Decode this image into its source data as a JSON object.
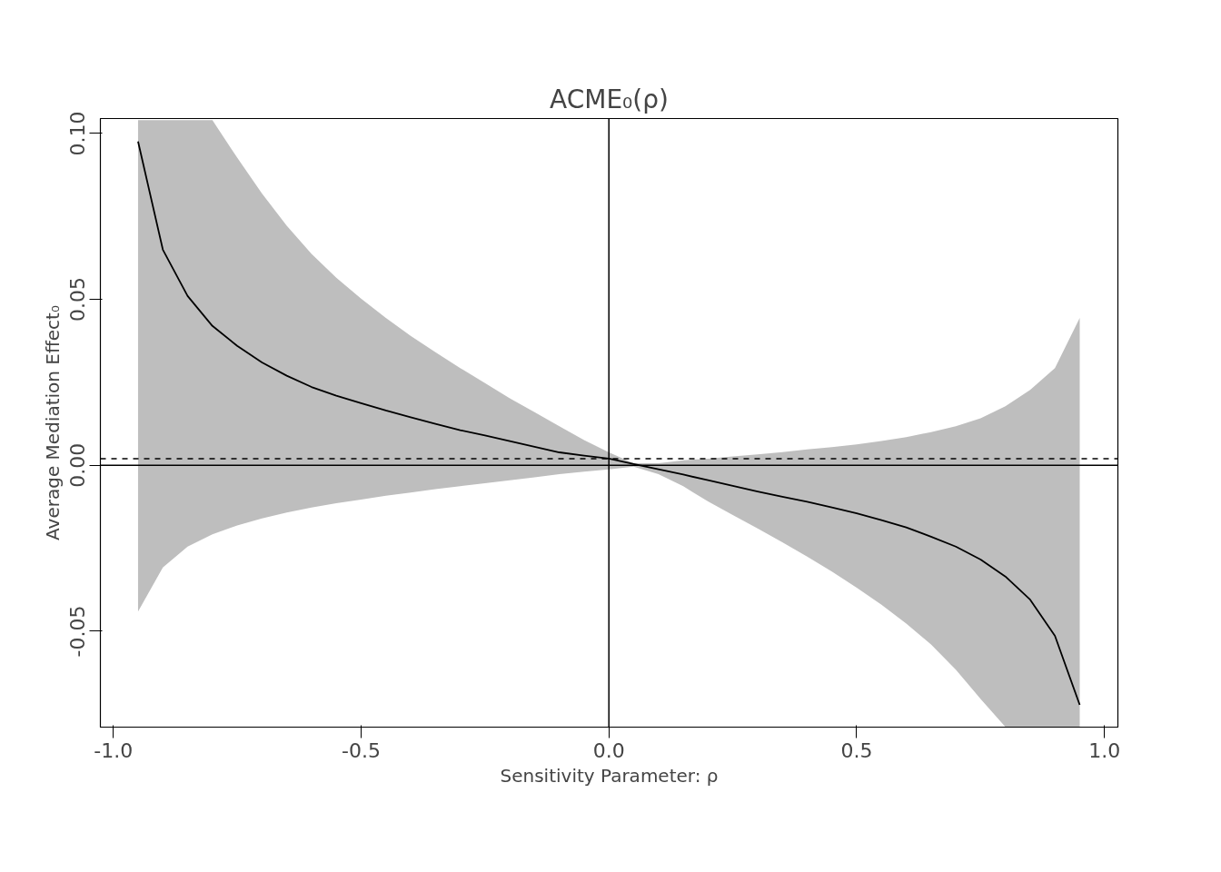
{
  "chart_data": {
    "type": "line",
    "title": "ACME₀(ρ)",
    "xlabel": "Sensitivity Parameter: ρ",
    "ylabel": "Average Mediation Effect₀",
    "xlim": [
      -1.026,
      1.027
    ],
    "ylim": [
      -0.0789,
      0.1045
    ],
    "xticks": [
      {
        "value": -1,
        "label": "-1.0"
      },
      {
        "value": -0.5,
        "label": "-0.5"
      },
      {
        "value": 0,
        "label": "0.0"
      },
      {
        "value": 0.5,
        "label": "0.5"
      },
      {
        "value": 1,
        "label": "1.0"
      }
    ],
    "yticks": [
      {
        "value": -0.05,
        "label": "-0.05"
      },
      {
        "value": 0,
        "label": "0.00"
      },
      {
        "value": 0.05,
        "label": "0.05"
      },
      {
        "value": 0.1,
        "label": "0.10"
      }
    ],
    "grid": false,
    "marker": "none",
    "line_style": "solid",
    "ref_lines": [
      {
        "axis": "y",
        "value": 0,
        "color": "#000000",
        "line_style": "solid"
      },
      {
        "axis": "x",
        "value": 0,
        "color": "#000000",
        "line_style": "solid"
      },
      {
        "axis": "y",
        "value": 0.002,
        "color": "#000000",
        "line_style": "dashed"
      }
    ],
    "series": [
      {
        "color": "#000000",
        "x": [
          -0.95,
          -0.9,
          -0.85,
          -0.8,
          -0.75,
          -0.7,
          -0.65,
          -0.6,
          -0.55,
          -0.5,
          -0.45,
          -0.4,
          -0.35,
          -0.3,
          -0.25,
          -0.2,
          -0.15,
          -0.1,
          -0.05,
          0,
          0.05,
          0.1,
          0.15,
          0.2,
          0.25,
          0.3,
          0.35,
          0.4,
          0.45,
          0.5,
          0.55,
          0.6,
          0.65,
          0.7,
          0.75,
          0.8,
          0.85,
          0.9,
          0.95
        ],
        "values": [
          0.0976,
          0.065,
          0.051,
          0.042,
          0.036,
          0.031,
          0.027,
          0.0236,
          0.021,
          0.0187,
          0.0165,
          0.0145,
          0.0125,
          0.0106,
          0.009,
          0.0073,
          0.0056,
          0.0039,
          0.0029,
          0.002,
          0.0004,
          -0.0012,
          -0.0028,
          -0.0045,
          -0.0062,
          -0.0079,
          -0.0095,
          -0.011,
          -0.0127,
          -0.0145,
          -0.0165,
          -0.0187,
          -0.0215,
          -0.0245,
          -0.0284,
          -0.0335,
          -0.0405,
          -0.0514,
          -0.0722
        ],
        "upper": [
          0.104,
          0.104,
          0.104,
          0.104,
          0.0927,
          0.0819,
          0.0722,
          0.0637,
          0.0565,
          0.0502,
          0.0444,
          0.039,
          0.0341,
          0.0293,
          0.0248,
          0.0202,
          0.016,
          0.0118,
          0.0076,
          0.0039,
          0.0006,
          0.0006,
          0.0015,
          0.002,
          0.0027,
          0.0033,
          0.004,
          0.0048,
          0.0055,
          0.0063,
          0.0073,
          0.0085,
          0.01,
          0.0118,
          0.0142,
          0.0178,
          0.0227,
          0.0293,
          0.0444
        ],
        "lower": [
          -0.0441,
          -0.0308,
          -0.0245,
          -0.0208,
          -0.0181,
          -0.016,
          -0.0142,
          -0.0127,
          -0.0114,
          -0.0103,
          -0.0092,
          -0.0082,
          -0.0072,
          -0.0063,
          -0.0054,
          -0.0045,
          -0.0036,
          -0.0027,
          -0.0019,
          -0.0012,
          -0.0004,
          -0.0027,
          -0.0063,
          -0.0109,
          -0.015,
          -0.019,
          -0.0232,
          -0.0275,
          -0.032,
          -0.0369,
          -0.042,
          -0.0477,
          -0.054,
          -0.0616,
          -0.0704,
          -0.0788,
          -0.0788,
          -0.0788,
          -0.0788
        ]
      }
    ]
  }
}
